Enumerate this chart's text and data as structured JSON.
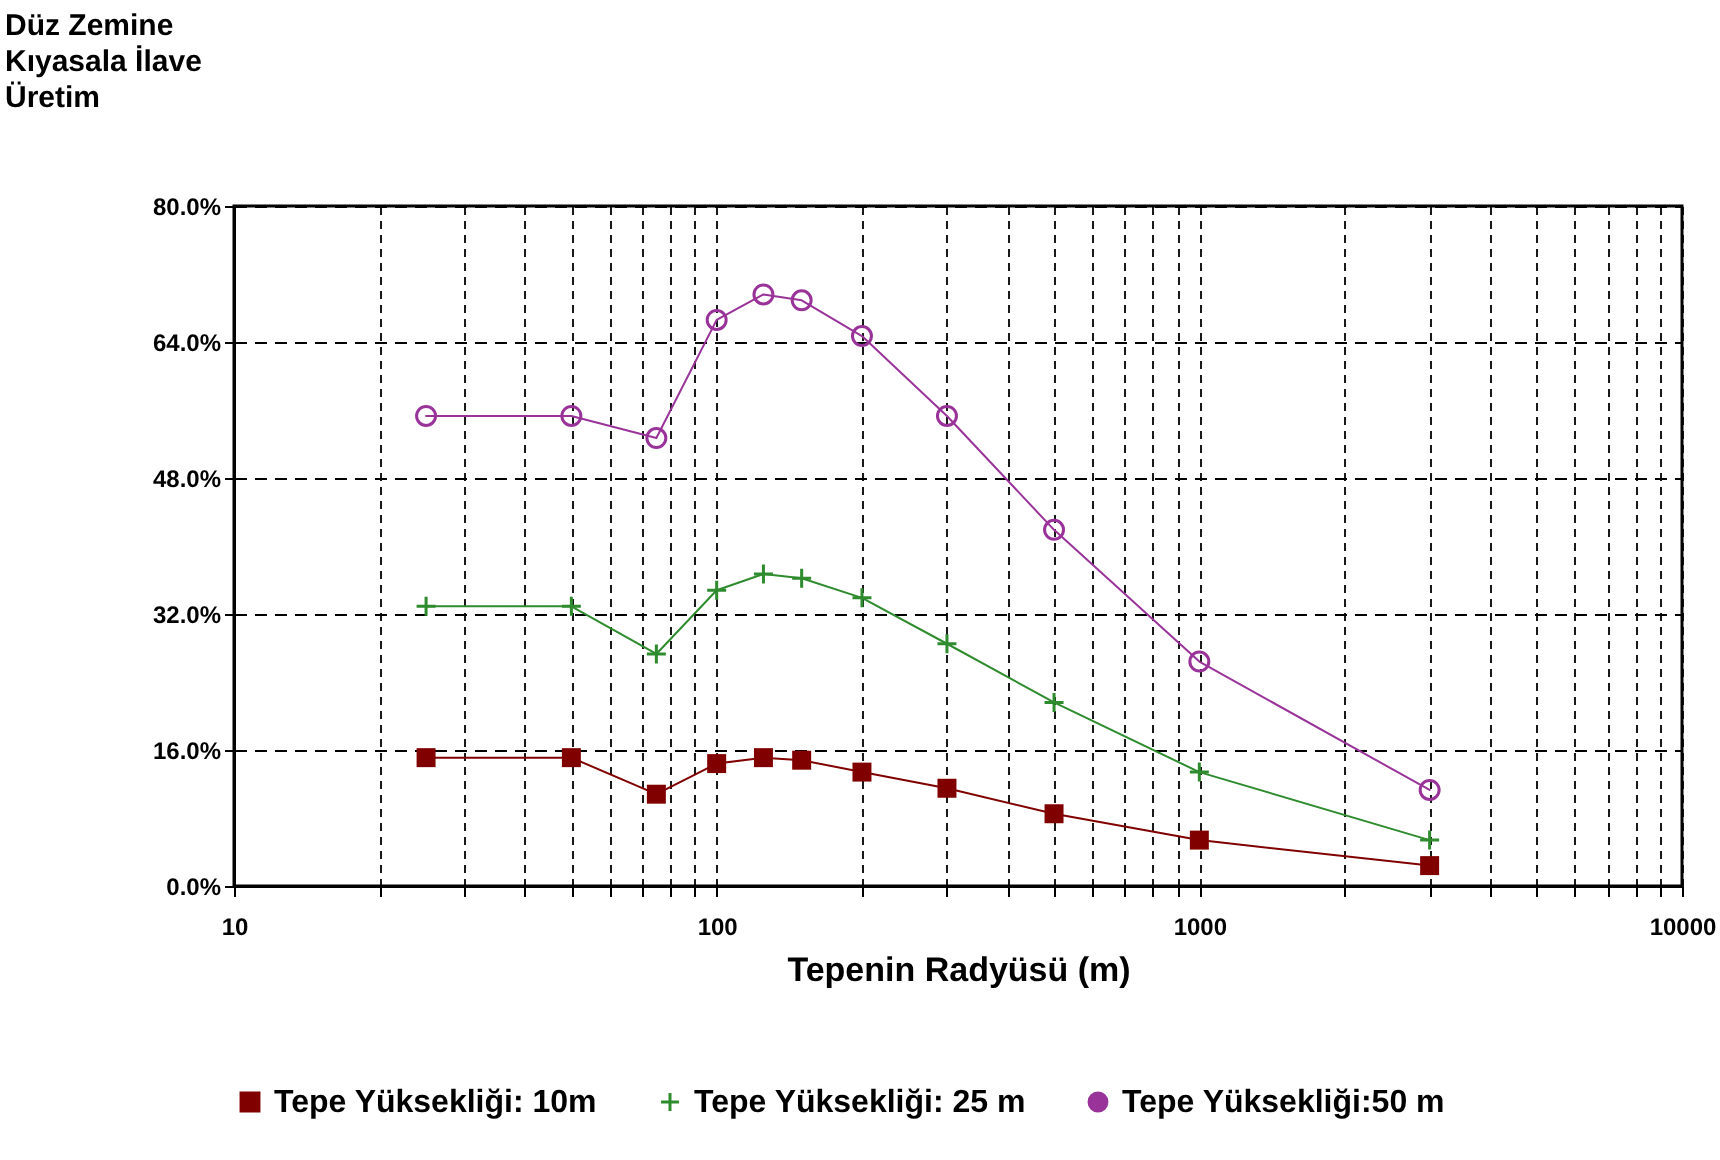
{
  "chart_data": {
    "type": "line",
    "ylabel": "Düz Zemine\nKıyasala İlave\nÜretim",
    "xlabel": "Tepenin Radyüsü (m)",
    "log": "x",
    "x": [
      25,
      50,
      75,
      100,
      125,
      150,
      200,
      300,
      500,
      1000,
      3000
    ],
    "series": [
      {
        "name": "Tepe Yüksekliği: 10m",
        "color": "#800000",
        "marker": "square",
        "values": [
          15.1,
          15.1,
          10.8,
          14.4,
          15.1,
          14.8,
          13.4,
          11.5,
          8.5,
          5.4,
          2.4
        ]
      },
      {
        "name": "Tepe Yüksekliği: 25 m",
        "color": "#2e8b2e",
        "marker": "cross",
        "values": [
          32.9,
          32.9,
          27.3,
          34.8,
          36.7,
          36.2,
          33.9,
          28.5,
          21.6,
          13.4,
          5.4
        ]
      },
      {
        "name": "Tepe Yüksekliği:50 m",
        "color": "#993399",
        "marker": "circle",
        "values": [
          55.3,
          55.3,
          52.7,
          66.6,
          69.6,
          68.9,
          64.7,
          55.3,
          41.9,
          26.4,
          11.3
        ]
      }
    ],
    "xlim": [
      10,
      10000
    ],
    "xticks": [
      10,
      {
        "value": 20,
        "label": null
      },
      {
        "value": 30,
        "label": null
      },
      {
        "value": 40,
        "label": null
      },
      {
        "value": 50,
        "label": null
      },
      {
        "value": 60,
        "label": null
      },
      {
        "value": 70,
        "label": null
      },
      {
        "value": 80,
        "label": null
      },
      {
        "value": 90,
        "label": null
      },
      100,
      {
        "value": 200,
        "label": null
      },
      {
        "value": 300,
        "label": null
      },
      {
        "value": 400,
        "label": null
      },
      {
        "value": 500,
        "label": null
      },
      {
        "value": 600,
        "label": null
      },
      {
        "value": 700,
        "label": null
      },
      {
        "value": 800,
        "label": null
      },
      {
        "value": 900,
        "label": null
      },
      1000,
      {
        "value": 2000,
        "label": null
      },
      {
        "value": 3000,
        "label": null
      },
      {
        "value": 4000,
        "label": null
      },
      {
        "value": 5000,
        "label": null
      },
      {
        "value": 6000,
        "label": null
      },
      {
        "value": 7000,
        "label": null
      },
      {
        "value": 8000,
        "label": null
      },
      {
        "value": 9000,
        "label": null
      },
      10000
    ],
    "ylim": [
      0,
      80
    ],
    "yticks": [
      {
        "value": 0,
        "label": "0.0%"
      },
      {
        "value": 16,
        "label": "16.0%"
      },
      {
        "value": 32,
        "label": "32.0%"
      },
      {
        "value": 48,
        "label": "48.0%"
      },
      {
        "value": 64,
        "label": "64.0%"
      },
      {
        "value": 80,
        "label": "80.0%"
      }
    ],
    "grid": true,
    "legend": "bottom",
    "line_style": "solid"
  }
}
